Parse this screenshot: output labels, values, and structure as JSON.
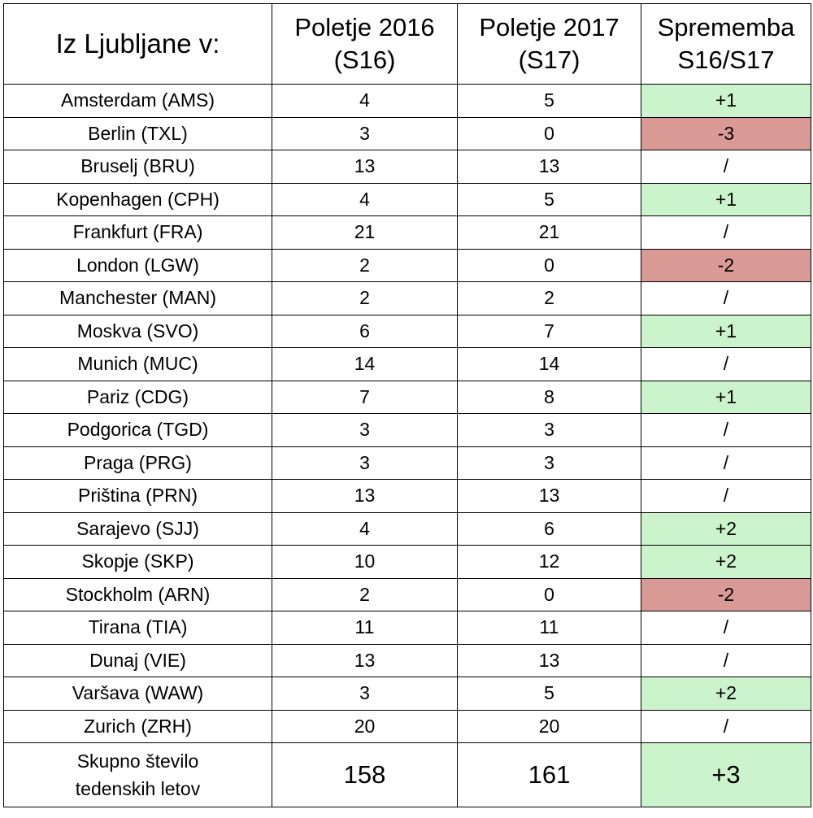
{
  "header": {
    "col1": "Iz Ljubljane v:",
    "col2_line1": "Poletje 2016",
    "col2_line2": "(S16)",
    "col3_line1": "Poletje 2017",
    "col3_line2": "(S17)",
    "col4_line1": "Sprememba",
    "col4_line2": "S16/S17"
  },
  "rows": [
    {
      "dest": "Amsterdam (AMS)",
      "s16": "4",
      "s17": "5",
      "change": "+1",
      "status": "pos"
    },
    {
      "dest": "Berlin (TXL)",
      "s16": "3",
      "s17": "0",
      "change": "-3",
      "status": "neg"
    },
    {
      "dest": "Bruselj (BRU)",
      "s16": "13",
      "s17": "13",
      "change": "/",
      "status": "none"
    },
    {
      "dest": "Kopenhagen (CPH)",
      "s16": "4",
      "s17": "5",
      "change": "+1",
      "status": "pos"
    },
    {
      "dest": "Frankfurt (FRA)",
      "s16": "21",
      "s17": "21",
      "change": "/",
      "status": "none"
    },
    {
      "dest": "London (LGW)",
      "s16": "2",
      "s17": "0",
      "change": "-2",
      "status": "neg"
    },
    {
      "dest": "Manchester (MAN)",
      "s16": "2",
      "s17": "2",
      "change": "/",
      "status": "none"
    },
    {
      "dest": "Moskva (SVO)",
      "s16": "6",
      "s17": "7",
      "change": "+1",
      "status": "pos"
    },
    {
      "dest": "Munich (MUC)",
      "s16": "14",
      "s17": "14",
      "change": "/",
      "status": "none"
    },
    {
      "dest": "Pariz (CDG)",
      "s16": "7",
      "s17": "8",
      "change": "+1",
      "status": "pos"
    },
    {
      "dest": "Podgorica (TGD)",
      "s16": "3",
      "s17": "3",
      "change": "/",
      "status": "none"
    },
    {
      "dest": "Praga (PRG)",
      "s16": "3",
      "s17": "3",
      "change": "/",
      "status": "none"
    },
    {
      "dest": "Priština (PRN)",
      "s16": "13",
      "s17": "13",
      "change": "/",
      "status": "none"
    },
    {
      "dest": "Sarajevo (SJJ)",
      "s16": "4",
      "s17": "6",
      "change": "+2",
      "status": "pos"
    },
    {
      "dest": "Skopje (SKP)",
      "s16": "10",
      "s17": "12",
      "change": "+2",
      "status": "pos"
    },
    {
      "dest": "Stockholm (ARN)",
      "s16": "2",
      "s17": "0",
      "change": "-2",
      "status": "neg"
    },
    {
      "dest": "Tirana (TIA)",
      "s16": "11",
      "s17": "11",
      "change": "/",
      "status": "none"
    },
    {
      "dest": "Dunaj (VIE)",
      "s16": "13",
      "s17": "13",
      "change": "/",
      "status": "none"
    },
    {
      "dest": "Varšava (WAW)",
      "s16": "3",
      "s17": "5",
      "change": "+2",
      "status": "pos"
    },
    {
      "dest": "Zurich (ZRH)",
      "s16": "20",
      "s17": "20",
      "change": "/",
      "status": "none"
    }
  ],
  "total": {
    "label_line1": "Skupno število",
    "label_line2": "tedenskih letov",
    "s16": "158",
    "s17": "161",
    "change": "+3",
    "status": "pos"
  },
  "colors": {
    "positive_fill": "#ccf4cc",
    "negative_fill": "#d99a96"
  }
}
